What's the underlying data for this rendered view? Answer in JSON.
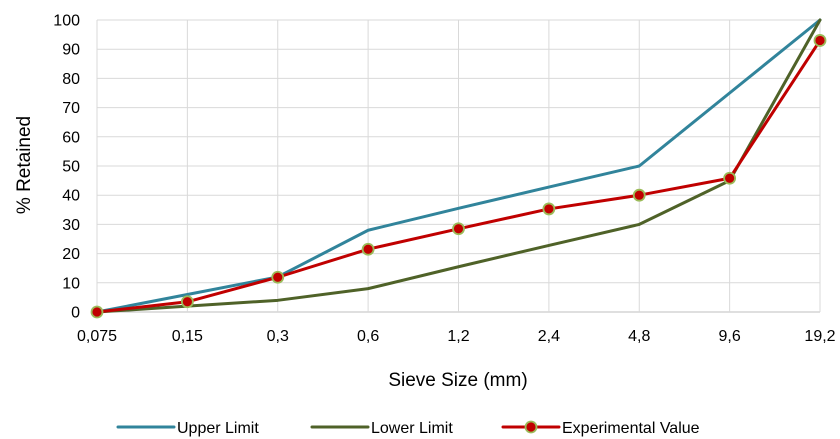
{
  "chart_data": {
    "type": "line",
    "title": "",
    "xlabel": "Sieve Size (mm)",
    "ylabel": "% Retained",
    "categories": [
      "0,075",
      "0,15",
      "0,3",
      "0,6",
      "1,2",
      "2,4",
      "4,8",
      "9,6",
      "19,2"
    ],
    "ylim": [
      0,
      100
    ],
    "yticks": [
      "0",
      "10",
      "20",
      "30",
      "40",
      "50",
      "60",
      "70",
      "80",
      "90",
      "100"
    ],
    "grid": true,
    "legend_position": "bottom",
    "series": [
      {
        "name": "Upper Limit",
        "color": "#31849B",
        "marker": false,
        "values": [
          0,
          6,
          12,
          28,
          35.5,
          42.8,
          50,
          75,
          100
        ]
      },
      {
        "name": "Lower Limit",
        "color": "#4F6228",
        "marker": false,
        "values": [
          0,
          2,
          4,
          8,
          15.5,
          22.8,
          30,
          45,
          100
        ]
      },
      {
        "name": "Experimental Value",
        "color": "#C00000",
        "marker": true,
        "marker_fill": "#C00000",
        "marker_stroke": "#9BBB59",
        "values": [
          0,
          3.5,
          11.9,
          21.5,
          28.5,
          35.3,
          40,
          45.8,
          93
        ]
      }
    ]
  }
}
